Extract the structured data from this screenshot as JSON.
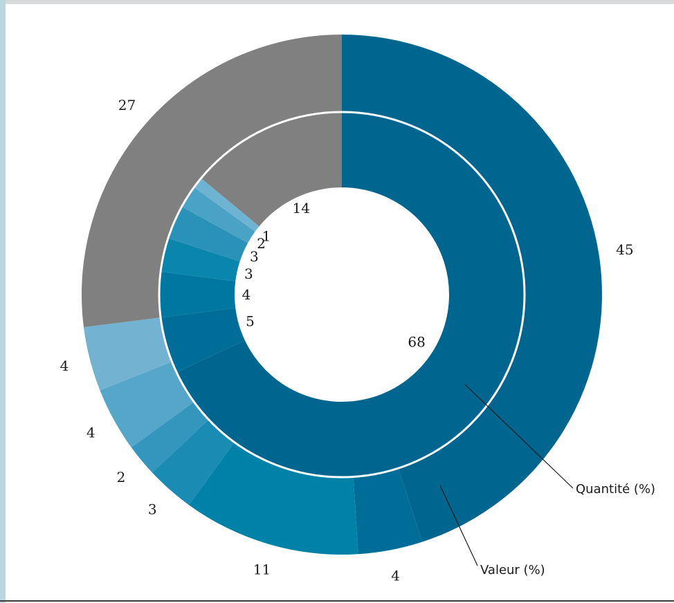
{
  "chart_data": {
    "type": "pie",
    "subtype": "nested-donut",
    "series": [
      {
        "name": "Valeur (%)",
        "ring": "outer",
        "values": [
          45,
          4,
          11,
          3,
          2,
          4,
          4,
          27
        ],
        "colors": [
          "#00668f",
          "#006d98",
          "#0081a8",
          "#1a8cb3",
          "#3596bd",
          "#55a6c9",
          "#73b2d1",
          "#808080"
        ]
      },
      {
        "name": "Quantité (%)",
        "ring": "inner",
        "values": [
          68,
          5,
          4,
          3,
          3,
          2,
          1,
          14
        ],
        "colors": [
          "#00668f",
          "#006d98",
          "#0077a1",
          "#0a85ab",
          "#2a92b8",
          "#4aa2c6",
          "#6fb3d3",
          "#808080"
        ]
      }
    ]
  }
}
